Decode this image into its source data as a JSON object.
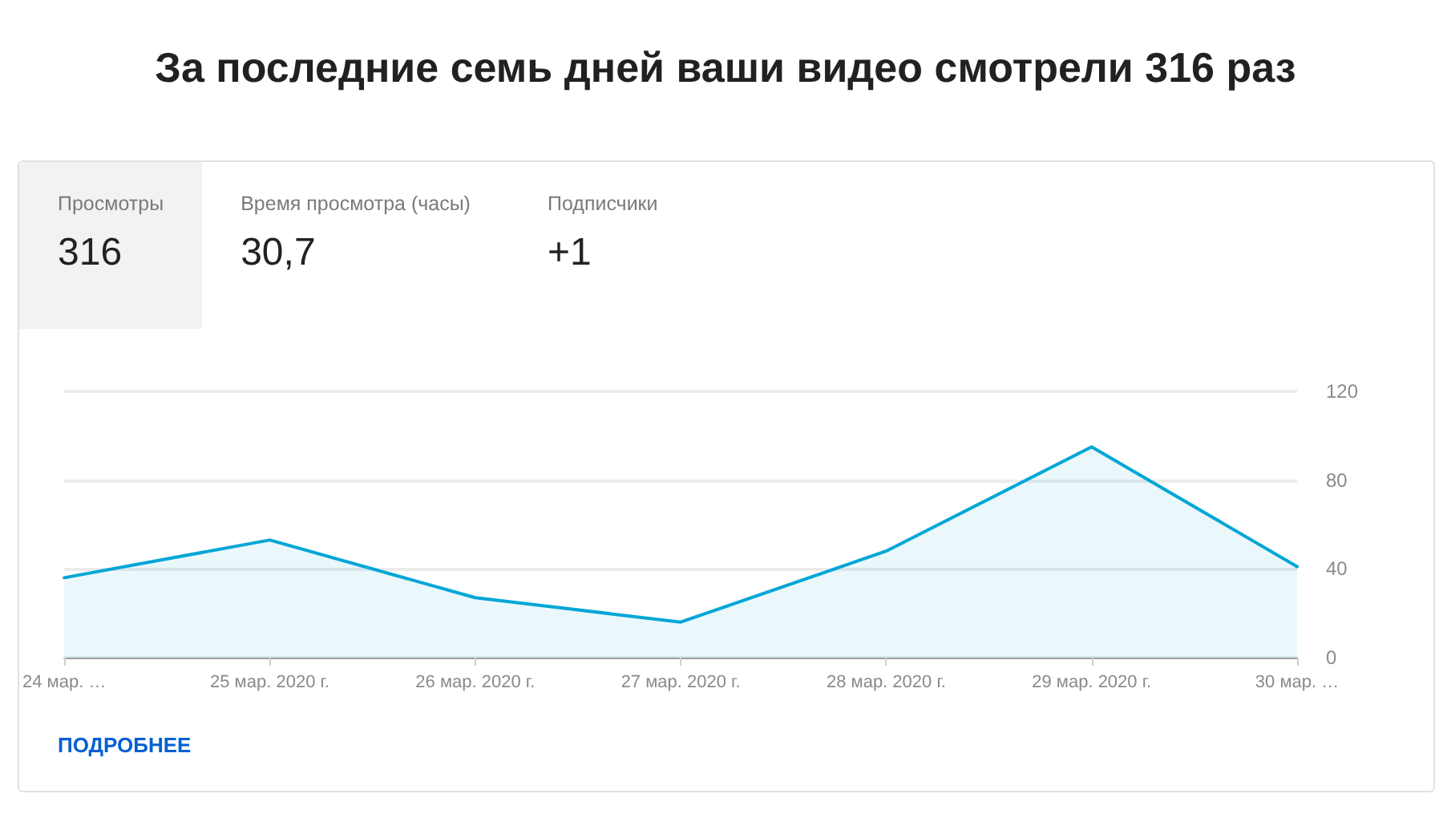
{
  "chart_data": {
    "type": "area",
    "title": "За последние семь дней ваши видео смотрели 316 раз",
    "categories": [
      "24 мар. …",
      "25 мар. 2020 г.",
      "26 мар. 2020 г.",
      "27 мар. 2020 г.",
      "28 мар. 2020 г.",
      "29 мар. 2020 г.",
      "30 мар. …"
    ],
    "series": [
      {
        "color": "#00a6d6",
        "values": [
          36,
          53,
          27,
          16,
          48,
          95,
          41
        ]
      }
    ],
    "ylim": [
      0,
      120
    ],
    "yticks": [
      0,
      40,
      80,
      120
    ],
    "grid": "y",
    "marker": "none",
    "line_style": "solid",
    "annotations": [
      "Просмотры",
      "316",
      "Время просмотра (часы)",
      "30,7",
      "Подписчики",
      "+1",
      "ПОДРОБНЕЕ"
    ]
  }
}
